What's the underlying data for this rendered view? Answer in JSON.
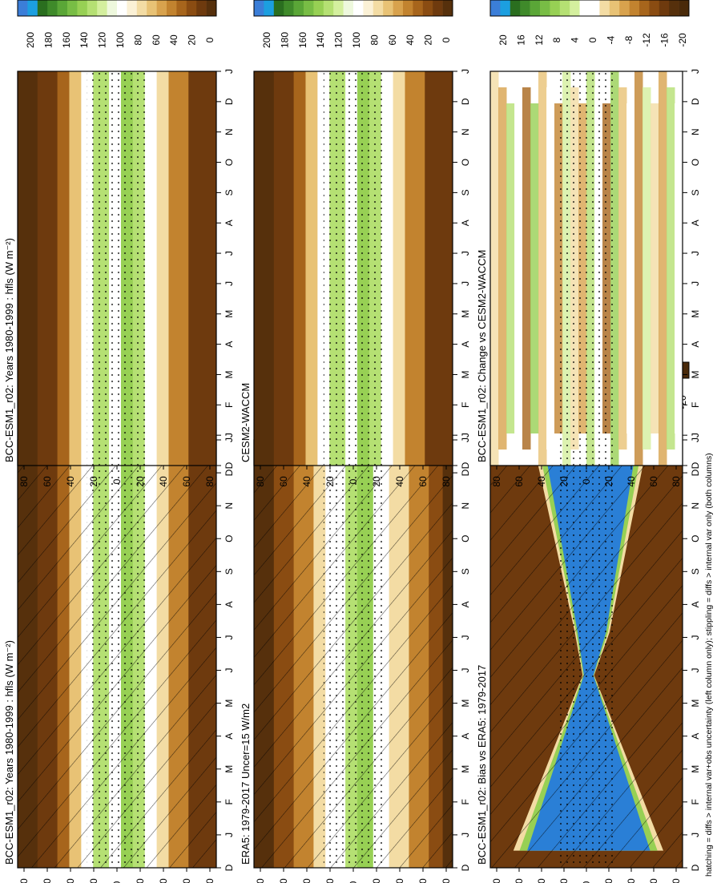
{
  "footnote": "hatching = diffs > internal var+obs uncertainty (left column only); stippling = diffs > internal var only (both columns)",
  "months": [
    "D",
    "J",
    "F",
    "M",
    "A",
    "M",
    "J",
    "J",
    "A",
    "S",
    "O",
    "N",
    "D",
    "J"
  ],
  "lat_ticks": [
    "80",
    "60",
    "40",
    "20",
    "0",
    "20",
    "40",
    "60",
    "80"
  ],
  "palette": {
    "abs": [
      "#3b7ed8",
      "#1c9fe0",
      "#2a6e1f",
      "#3f8a2a",
      "#5aa637",
      "#78bd45",
      "#97d054",
      "#b5e073",
      "#d4ef9e",
      "#eef8dd",
      "#ffffff",
      "#fbf1d6",
      "#f3dca4",
      "#e8c275",
      "#d8a24d",
      "#c2832f",
      "#a7651c",
      "#8a4c12",
      "#6e3a0e",
      "#56300c"
    ],
    "diff": [
      "#3b7ed8",
      "#1c9fe0",
      "#2a6e1f",
      "#3f8a2a",
      "#5aa637",
      "#78bd45",
      "#97d054",
      "#b5e073",
      "#d4ef9e",
      "#ffffff",
      "#ffffff",
      "#f3dca4",
      "#e8c275",
      "#d8a24d",
      "#c2832f",
      "#a7651c",
      "#8a4c12",
      "#6e3a0e",
      "#56300c",
      "#4a2a0a"
    ]
  },
  "chart_data": [
    {
      "id": "left-top",
      "type": "heatmap",
      "title": "BCC-ESM1_r02: Years 1980-1999 : hfls (W m⁻²)",
      "x": "month (Dec–Jan)",
      "y": "latitude 90S–90N",
      "colorbar": {
        "ticks": [
          "200",
          "180",
          "160",
          "140",
          "120",
          "100",
          "80",
          "60",
          "40",
          "20",
          "0"
        ]
      },
      "hatching": true,
      "stippling": true
    },
    {
      "id": "left-middle",
      "type": "heatmap",
      "title": "ERA5: 1979-2017 Uncer=15 W/m2",
      "colorbar": {
        "ticks": [
          "200",
          "180",
          "160",
          "140",
          "120",
          "100",
          "80",
          "60",
          "40",
          "20",
          "0"
        ]
      },
      "hatching": true,
      "stippling": true
    },
    {
      "id": "left-bottom",
      "type": "heatmap",
      "title": "BCC-ESM1_r02: Bias vs ERA5: 1979-2017",
      "colorbar": {
        "ticks": [
          "20",
          "16",
          "12",
          "8",
          "4",
          "0",
          "-4",
          "-8",
          "-12",
          "-16",
          "-20"
        ]
      },
      "hatching": true,
      "stippling": true
    },
    {
      "id": "right-top",
      "type": "heatmap",
      "title": "BCC-ESM1_r02: Years 1980-1999 : hfls (W m⁻²)",
      "colorbar": {
        "ticks": [
          "200",
          "180",
          "160",
          "140",
          "120",
          "100",
          "80",
          "60",
          "40",
          "20",
          "0"
        ]
      },
      "stippling": true
    },
    {
      "id": "right-middle",
      "type": "heatmap",
      "title": "CESM2-WACCM",
      "colorbar": {
        "ticks": [
          "200",
          "180",
          "160",
          "140",
          "120",
          "100",
          "80",
          "60",
          "40",
          "20",
          "0"
        ]
      },
      "stippling": true
    },
    {
      "id": "right-bottom",
      "type": "heatmap",
      "title": "BCC-ESM1_r02: Change vs CESM2-WACCM",
      "colorbar": {
        "ticks": [
          "20",
          "16",
          "12",
          "8",
          "4",
          "0",
          "-4",
          "-8",
          "-12",
          "-16",
          "-20"
        ]
      },
      "stippling": true
    }
  ]
}
